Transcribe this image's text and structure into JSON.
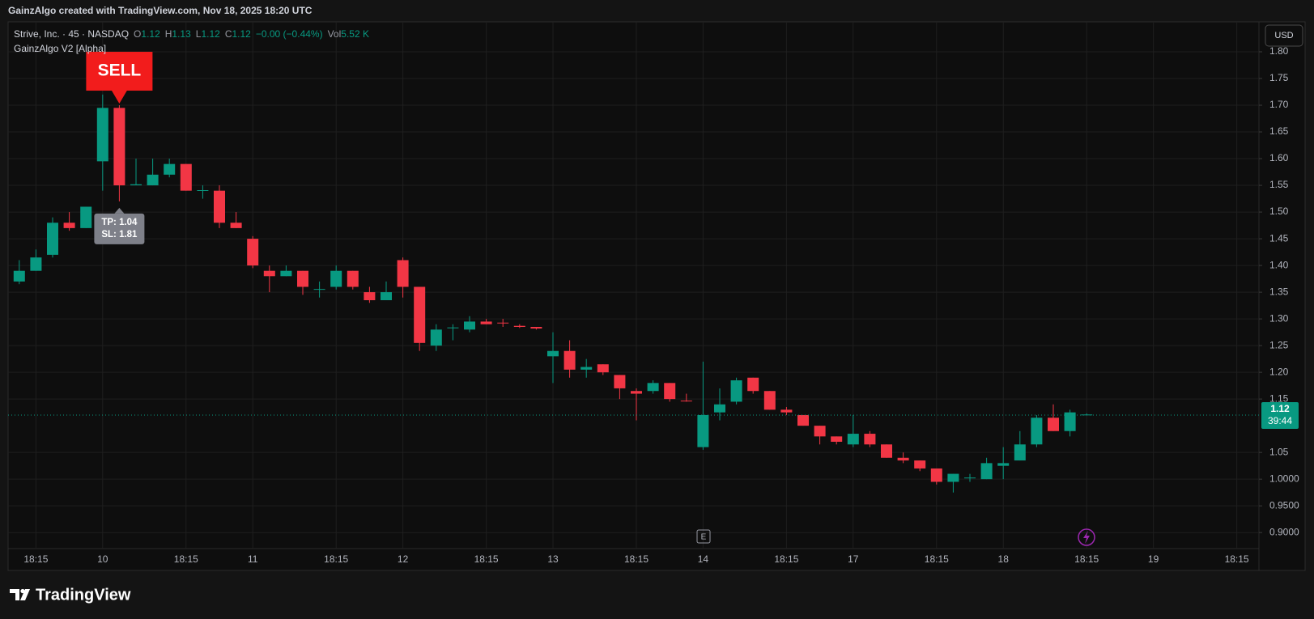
{
  "header": "GainzAlgo created with TradingView.com, Nov 18, 2025 18:20 UTC",
  "footer": "TradingView",
  "currency": "USD",
  "earnings_marker": "E",
  "legend": {
    "symbol": "Strive, Inc. · 45 · NASDAQ",
    "items": [
      {
        "key": "O",
        "value": "1.12"
      },
      {
        "key": "H",
        "value": "1.13"
      },
      {
        "key": "L",
        "value": "1.12"
      },
      {
        "key": "C",
        "value": "1.12"
      }
    ],
    "change": "−0.00 (−0.44%)",
    "volume": {
      "key": "Vol",
      "value": "5.52 K"
    },
    "indicator": "GainzAlgo V2 [Alpha]"
  },
  "chart_data": {
    "type": "candlestick",
    "up_color": "#089981",
    "down_color": "#f23645",
    "grid": true,
    "categories": [
      null,
      "18:15",
      null,
      null,
      null,
      "10",
      null,
      null,
      null,
      null,
      "18:15",
      null,
      null,
      null,
      "11",
      null,
      null,
      null,
      null,
      "18:15",
      null,
      null,
      null,
      "12",
      null,
      null,
      null,
      null,
      "18:15",
      null,
      null,
      null,
      "13",
      null,
      null,
      null,
      null,
      "18:15",
      null,
      null,
      null,
      "14",
      null,
      null,
      null,
      null,
      "18:15",
      null,
      null,
      null,
      "17",
      null,
      null,
      null,
      null,
      "18:15",
      null,
      null,
      null,
      "18",
      null,
      null,
      null,
      null,
      "18:15",
      null,
      null,
      null,
      "19",
      null,
      null,
      null,
      null,
      "18:15",
      null
    ],
    "open": [
      1.37,
      1.39,
      1.42,
      1.48,
      1.47,
      1.595,
      1.695,
      1.55,
      1.55,
      1.57,
      1.59,
      1.54,
      1.54,
      1.48,
      1.45,
      1.39,
      1.38,
      1.39,
      1.355,
      1.36,
      1.39,
      1.35,
      1.335,
      1.41,
      1.36,
      1.25,
      1.283,
      1.28,
      1.295,
      1.293,
      1.287,
      1.285,
      1.23,
      1.24,
      1.205,
      1.215,
      1.195,
      1.165,
      1.165,
      1.18,
      1.147,
      1.06,
      1.125,
      1.145,
      1.19,
      1.165,
      1.13,
      1.12,
      1.1,
      1.08,
      1.065,
      1.085,
      1.065,
      1.04,
      1.035,
      1.02,
      0.995,
      1.002,
      1.0,
      1.025,
      1.035,
      1.065,
      1.115,
      1.09,
      1.12,
      null,
      null,
      null,
      null,
      null,
      null,
      null,
      null,
      null,
      null
    ],
    "high": [
      1.41,
      1.43,
      1.49,
      1.5,
      1.51,
      1.72,
      1.7,
      1.6,
      1.6,
      1.6,
      1.59,
      1.55,
      1.55,
      1.5,
      1.455,
      1.4,
      1.4,
      1.39,
      1.37,
      1.4,
      1.39,
      1.36,
      1.37,
      1.415,
      1.36,
      1.29,
      1.29,
      1.305,
      1.3,
      1.3,
      1.29,
      1.285,
      1.275,
      1.26,
      1.225,
      1.215,
      1.195,
      1.17,
      1.185,
      1.18,
      1.16,
      1.22,
      1.17,
      1.19,
      1.19,
      1.165,
      1.135,
      1.12,
      1.1,
      1.08,
      1.12,
      1.09,
      1.065,
      1.05,
      1.035,
      1.02,
      1.01,
      1.01,
      1.04,
      1.06,
      1.09,
      1.12,
      1.14,
      1.13,
      1.123,
      null,
      null,
      null,
      null,
      null,
      null,
      null,
      null,
      null,
      null
    ],
    "low": [
      1.365,
      1.39,
      1.415,
      1.465,
      1.47,
      1.54,
      1.52,
      1.55,
      1.55,
      1.565,
      1.54,
      1.525,
      1.47,
      1.47,
      1.395,
      1.35,
      1.38,
      1.345,
      1.34,
      1.355,
      1.355,
      1.33,
      1.335,
      1.34,
      1.24,
      1.24,
      1.26,
      1.275,
      1.29,
      1.285,
      1.283,
      1.28,
      1.18,
      1.19,
      1.19,
      1.195,
      1.15,
      1.11,
      1.16,
      1.145,
      1.145,
      1.055,
      1.11,
      1.14,
      1.16,
      1.13,
      1.12,
      1.1,
      1.065,
      1.065,
      1.06,
      1.06,
      1.04,
      1.03,
      1.015,
      0.99,
      0.975,
      0.995,
      1.0,
      1.0,
      1.035,
      1.06,
      1.09,
      1.08,
      1.12,
      null,
      null,
      null,
      null,
      null,
      null,
      null,
      null,
      null,
      null
    ],
    "close": [
      1.39,
      1.415,
      1.48,
      1.47,
      1.51,
      1.695,
      1.55,
      1.552,
      1.57,
      1.59,
      1.54,
      1.541,
      1.48,
      1.47,
      1.4,
      1.38,
      1.39,
      1.36,
      1.356,
      1.39,
      1.36,
      1.335,
      1.35,
      1.36,
      1.255,
      1.28,
      1.284,
      1.295,
      1.29,
      1.292,
      1.285,
      1.282,
      1.24,
      1.205,
      1.21,
      1.2,
      1.17,
      1.16,
      1.18,
      1.15,
      1.146,
      1.12,
      1.14,
      1.185,
      1.165,
      1.13,
      1.125,
      1.1,
      1.08,
      1.07,
      1.085,
      1.065,
      1.04,
      1.035,
      1.02,
      0.995,
      1.01,
      1.003,
      1.03,
      1.03,
      1.065,
      1.115,
      1.09,
      1.125,
      1.121,
      null,
      null,
      null,
      null,
      null,
      null,
      null,
      null,
      null,
      null
    ],
    "ylim": [
      0.87,
      1.85
    ],
    "yticks": [
      {
        "value": 1.8,
        "label": "1.80"
      },
      1.75,
      {
        "value": 1.7,
        "label": "1.70"
      },
      1.65,
      {
        "value": 1.6,
        "label": "1.60"
      },
      1.55,
      {
        "value": 1.5,
        "label": "1.50"
      },
      1.45,
      {
        "value": 1.4,
        "label": "1.40"
      },
      1.35,
      {
        "value": 1.3,
        "label": "1.30"
      },
      1.25,
      {
        "value": 1.2,
        "label": "1.20"
      },
      1.15,
      1.05,
      {
        "value": 1,
        "label": "1.0000"
      },
      {
        "value": 0.95,
        "label": "0.9500"
      },
      {
        "value": 0.9,
        "label": "0.9000"
      }
    ],
    "last_price": 1.12,
    "countdown": "39:44",
    "signal": {
      "text": "SELL",
      "x": 6
    },
    "targets": {
      "lines": [
        "TP: 1.04",
        "SL: 1.81"
      ],
      "x": 6
    }
  }
}
